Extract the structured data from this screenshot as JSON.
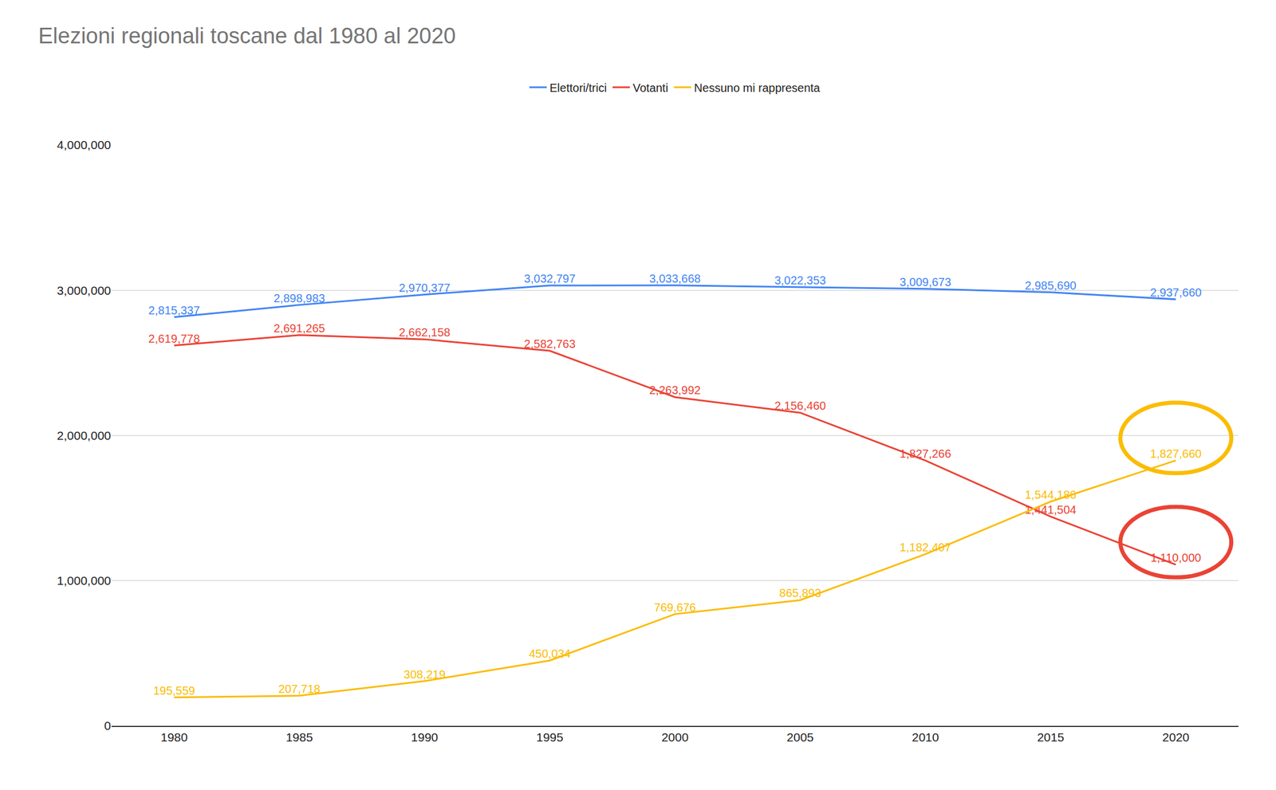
{
  "chart_data": {
    "type": "line",
    "title": "Elezioni regionali toscane dal 1980 al 2020",
    "categories": [
      "1980",
      "1985",
      "1990",
      "1995",
      "2000",
      "2005",
      "2010",
      "2015",
      "2020"
    ],
    "series": [
      {
        "name": "Elettori/trici",
        "color": "#4285f4",
        "values": [
          2815337,
          2898983,
          2970377,
          3032797,
          3033668,
          3022353,
          3009673,
          2985690,
          2937660
        ],
        "value_labels": [
          "2,815,337",
          "2,898,983",
          "2,970,377",
          "3,032,797",
          "3,033,668",
          "3,022,353",
          "3,009,673",
          "2,985,690",
          "2,937,660"
        ]
      },
      {
        "name": "Votanti",
        "color": "#ea4335",
        "values": [
          2619778,
          2691265,
          2662158,
          2582763,
          2263992,
          2156460,
          1827266,
          1441504,
          1110000
        ],
        "value_labels": [
          "2,619,778",
          "2,691,265",
          "2,662,158",
          "2,582,763",
          "2,263,992",
          "2,156,460",
          "1,827,266",
          "1,441,504",
          "1,110,000"
        ]
      },
      {
        "name": "Nessuno mi rappresenta",
        "color": "#fbbc04",
        "values": [
          195559,
          207718,
          308219,
          450034,
          769676,
          865893,
          1182407,
          1544186,
          1827660
        ],
        "value_labels": [
          "195,559",
          "207,718",
          "308,219",
          "450,034",
          "769,676",
          "865,893",
          "1,182,407",
          "1,544,186",
          "1,827,660"
        ]
      }
    ],
    "ylim": [
      0,
      4000000
    ],
    "yticks": [
      0,
      {
        "value": 1000000,
        "label": "1,000,000"
      },
      {
        "value": 2000000,
        "label": "2,000,000"
      },
      {
        "value": 3000000,
        "label": "3,000,000"
      },
      {
        "value": 4000000,
        "label": "4,000,000"
      }
    ],
    "grid": true,
    "legend": "top",
    "data_labels": true
  }
}
